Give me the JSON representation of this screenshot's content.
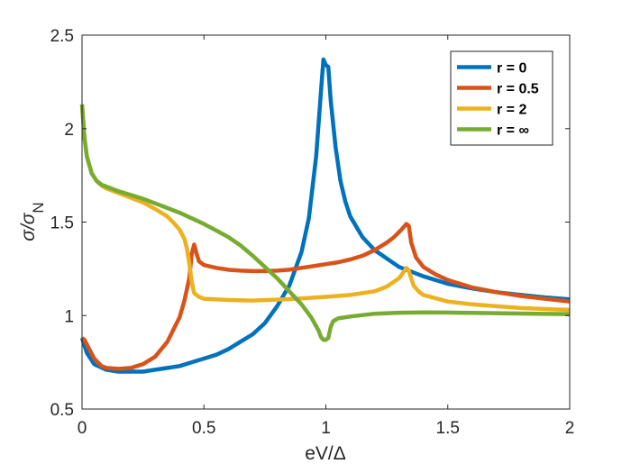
{
  "chart_data": {
    "type": "line",
    "title": "",
    "xlabel": "eV/Δ",
    "ylabel_main": "σ/σ",
    "ylabel_sub": "N",
    "xlim": [
      0,
      2
    ],
    "ylim": [
      0.5,
      2.5
    ],
    "xticks": [
      0,
      0.5,
      1,
      1.5,
      2
    ],
    "xtick_labels": [
      "0",
      "0.5",
      "1",
      "1.5",
      "2"
    ],
    "yticks": [
      0.5,
      1,
      1.5,
      2,
      2.5
    ],
    "ytick_labels": [
      "0.5",
      "1",
      "1.5",
      "2",
      "2.5"
    ],
    "grid": false,
    "legend_position": "top-right",
    "series": [
      {
        "name": "r = 0",
        "color": "#0072BD",
        "points": [
          [
            0,
            0.88
          ],
          [
            0.02,
            0.8
          ],
          [
            0.05,
            0.74
          ],
          [
            0.1,
            0.71
          ],
          [
            0.15,
            0.7
          ],
          [
            0.2,
            0.7
          ],
          [
            0.25,
            0.7
          ],
          [
            0.3,
            0.71
          ],
          [
            0.35,
            0.72
          ],
          [
            0.4,
            0.73
          ],
          [
            0.45,
            0.75
          ],
          [
            0.5,
            0.77
          ],
          [
            0.55,
            0.79
          ],
          [
            0.6,
            0.82
          ],
          [
            0.65,
            0.86
          ],
          [
            0.7,
            0.9
          ],
          [
            0.75,
            0.96
          ],
          [
            0.8,
            1.05
          ],
          [
            0.85,
            1.16
          ],
          [
            0.9,
            1.34
          ],
          [
            0.93,
            1.52
          ],
          [
            0.96,
            1.85
          ],
          [
            0.98,
            2.2
          ],
          [
            0.99,
            2.37
          ],
          [
            1.0,
            2.34
          ],
          [
            1.01,
            2.33
          ],
          [
            1.02,
            2.15
          ],
          [
            1.04,
            1.9
          ],
          [
            1.06,
            1.72
          ],
          [
            1.08,
            1.61
          ],
          [
            1.1,
            1.53
          ],
          [
            1.15,
            1.42
          ],
          [
            1.2,
            1.35
          ],
          [
            1.3,
            1.26
          ],
          [
            1.4,
            1.21
          ],
          [
            1.5,
            1.17
          ],
          [
            1.6,
            1.145
          ],
          [
            1.7,
            1.125
          ],
          [
            1.8,
            1.11
          ],
          [
            1.9,
            1.097
          ],
          [
            2.0,
            1.087
          ]
        ]
      },
      {
        "name": "r = 0.5",
        "color": "#D95319",
        "points": [
          [
            0,
            0.88
          ],
          [
            0.01,
            0.87
          ],
          [
            0.03,
            0.82
          ],
          [
            0.05,
            0.77
          ],
          [
            0.08,
            0.73
          ],
          [
            0.1,
            0.72
          ],
          [
            0.15,
            0.715
          ],
          [
            0.2,
            0.72
          ],
          [
            0.25,
            0.74
          ],
          [
            0.3,
            0.78
          ],
          [
            0.35,
            0.86
          ],
          [
            0.4,
            0.99
          ],
          [
            0.42,
            1.08
          ],
          [
            0.44,
            1.2
          ],
          [
            0.45,
            1.33
          ],
          [
            0.46,
            1.38
          ],
          [
            0.47,
            1.33
          ],
          [
            0.48,
            1.29
          ],
          [
            0.5,
            1.27
          ],
          [
            0.55,
            1.255
          ],
          [
            0.6,
            1.245
          ],
          [
            0.65,
            1.24
          ],
          [
            0.7,
            1.238
          ],
          [
            0.75,
            1.238
          ],
          [
            0.8,
            1.24
          ],
          [
            0.85,
            1.245
          ],
          [
            0.9,
            1.255
          ],
          [
            0.95,
            1.265
          ],
          [
            1.0,
            1.275
          ],
          [
            1.05,
            1.285
          ],
          [
            1.1,
            1.3
          ],
          [
            1.15,
            1.32
          ],
          [
            1.2,
            1.35
          ],
          [
            1.25,
            1.39
          ],
          [
            1.28,
            1.42
          ],
          [
            1.31,
            1.46
          ],
          [
            1.33,
            1.49
          ],
          [
            1.34,
            1.48
          ],
          [
            1.35,
            1.39
          ],
          [
            1.37,
            1.31
          ],
          [
            1.4,
            1.26
          ],
          [
            1.45,
            1.22
          ],
          [
            1.5,
            1.19
          ],
          [
            1.6,
            1.15
          ],
          [
            1.7,
            1.125
          ],
          [
            1.8,
            1.105
          ],
          [
            1.9,
            1.09
          ],
          [
            2.0,
            1.075
          ]
        ]
      },
      {
        "name": "r = 2",
        "color": "#EDB120",
        "points": [
          [
            0,
            2.13
          ],
          [
            0.01,
            1.95
          ],
          [
            0.02,
            1.85
          ],
          [
            0.04,
            1.76
          ],
          [
            0.06,
            1.72
          ],
          [
            0.08,
            1.695
          ],
          [
            0.1,
            1.68
          ],
          [
            0.15,
            1.655
          ],
          [
            0.2,
            1.63
          ],
          [
            0.25,
            1.605
          ],
          [
            0.3,
            1.57
          ],
          [
            0.35,
            1.53
          ],
          [
            0.38,
            1.49
          ],
          [
            0.4,
            1.46
          ],
          [
            0.42,
            1.41
          ],
          [
            0.43,
            1.36
          ],
          [
            0.44,
            1.28
          ],
          [
            0.45,
            1.18
          ],
          [
            0.46,
            1.12
          ],
          [
            0.48,
            1.1
          ],
          [
            0.5,
            1.09
          ],
          [
            0.6,
            1.083
          ],
          [
            0.7,
            1.08
          ],
          [
            0.8,
            1.085
          ],
          [
            0.9,
            1.092
          ],
          [
            1.0,
            1.1
          ],
          [
            1.1,
            1.11
          ],
          [
            1.2,
            1.13
          ],
          [
            1.25,
            1.155
          ],
          [
            1.3,
            1.2
          ],
          [
            1.32,
            1.235
          ],
          [
            1.33,
            1.255
          ],
          [
            1.34,
            1.24
          ],
          [
            1.35,
            1.2
          ],
          [
            1.36,
            1.16
          ],
          [
            1.38,
            1.13
          ],
          [
            1.4,
            1.11
          ],
          [
            1.5,
            1.075
          ],
          [
            1.6,
            1.06
          ],
          [
            1.7,
            1.05
          ],
          [
            1.8,
            1.04
          ],
          [
            1.9,
            1.035
          ],
          [
            2.0,
            1.03
          ]
        ]
      },
      {
        "name": "r = ∞",
        "color": "#77AC30",
        "points": [
          [
            0,
            2.13
          ],
          [
            0.01,
            1.95
          ],
          [
            0.02,
            1.85
          ],
          [
            0.04,
            1.76
          ],
          [
            0.06,
            1.72
          ],
          [
            0.08,
            1.7
          ],
          [
            0.1,
            1.69
          ],
          [
            0.15,
            1.665
          ],
          [
            0.2,
            1.645
          ],
          [
            0.25,
            1.625
          ],
          [
            0.3,
            1.6
          ],
          [
            0.35,
            1.575
          ],
          [
            0.4,
            1.55
          ],
          [
            0.45,
            1.52
          ],
          [
            0.5,
            1.49
          ],
          [
            0.55,
            1.455
          ],
          [
            0.6,
            1.42
          ],
          [
            0.65,
            1.375
          ],
          [
            0.7,
            1.32
          ],
          [
            0.75,
            1.26
          ],
          [
            0.8,
            1.2
          ],
          [
            0.85,
            1.13
          ],
          [
            0.9,
            1.06
          ],
          [
            0.94,
            0.99
          ],
          [
            0.97,
            0.92
          ],
          [
            0.98,
            0.885
          ],
          [
            0.99,
            0.87
          ],
          [
            1.0,
            0.87
          ],
          [
            1.01,
            0.88
          ],
          [
            1.02,
            0.94
          ],
          [
            1.03,
            0.97
          ],
          [
            1.05,
            0.985
          ],
          [
            1.1,
            0.995
          ],
          [
            1.2,
            1.01
          ],
          [
            1.3,
            1.015
          ],
          [
            1.4,
            1.017
          ],
          [
            1.5,
            1.016
          ],
          [
            1.6,
            1.014
          ],
          [
            1.7,
            1.013
          ],
          [
            1.8,
            1.011
          ],
          [
            1.9,
            1.009
          ],
          [
            2.0,
            1.008
          ]
        ]
      }
    ]
  }
}
